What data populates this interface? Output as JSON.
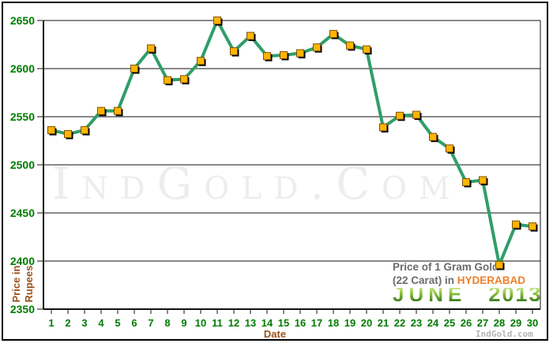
{
  "watermark_text": "IndGold.Com",
  "footer_brand": "IndGold.com",
  "labels": {
    "x_axis": "Date",
    "y_axis_line1": "Price in",
    "y_axis_line2": "Rupees"
  },
  "title": {
    "line1": "Price of 1 Gram Gold",
    "line2_prefix": "(22 Carat) in ",
    "city": "HYDERABAD",
    "month": "JUNE",
    "year": "2013"
  },
  "colors": {
    "line": "#2f9e68",
    "marker_fill": "#ffb400",
    "marker_border": "#7c5100",
    "marker_shadow": "#000000",
    "axis_green": "#007c00",
    "grid_black": "#111111",
    "brown": "#9a521c",
    "title_gray": "#6b6b6b",
    "city_orange": "#ef7f2a",
    "watermark_gray": "#ededed",
    "footer_gray": "#b4b4b4"
  },
  "chart_data": {
    "type": "line",
    "title": "Price of 1 Gram Gold (22 Carat) in HYDERABAD - JUNE 2013",
    "xlabel": "Date",
    "ylabel": "Price in Rupees",
    "x": [
      1,
      2,
      3,
      4,
      5,
      6,
      7,
      8,
      9,
      10,
      11,
      12,
      13,
      14,
      15,
      16,
      17,
      18,
      19,
      20,
      21,
      22,
      23,
      24,
      25,
      26,
      27,
      28,
      29,
      30
    ],
    "values": [
      2536,
      2532,
      2536,
      2556,
      2556,
      2600,
      2621,
      2588,
      2589,
      2608,
      2650,
      2618,
      2634,
      2613,
      2614,
      2616,
      2622,
      2636,
      2624,
      2620,
      2539,
      2551,
      2552,
      2529,
      2517,
      2482,
      2484,
      2396,
      2438,
      2436
    ],
    "ylim": [
      2350,
      2650
    ],
    "yticks": [
      2350,
      2400,
      2450,
      2500,
      2550,
      2600,
      2650
    ],
    "grid": true,
    "legend": false,
    "marker": "square"
  }
}
